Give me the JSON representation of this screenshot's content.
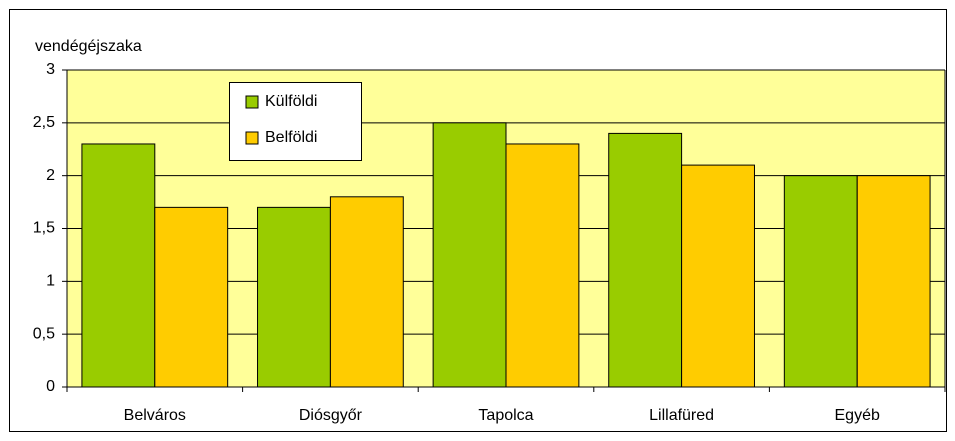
{
  "chart_data": {
    "type": "bar",
    "y_label": "vendégéjszaka",
    "categories": [
      "Belváros",
      "Diósgyőr",
      "Tapolca",
      "Lillafüred",
      "Egyéb"
    ],
    "series": [
      {
        "name": "Külföldi",
        "color": "#99cc00",
        "values": [
          2.3,
          1.7,
          2.5,
          2.4,
          2.0
        ]
      },
      {
        "name": "Belföldi",
        "color": "#ffcc00",
        "values": [
          1.7,
          1.8,
          2.3,
          2.1,
          2.0
        ]
      }
    ],
    "ylim": [
      0,
      3
    ],
    "yticks": [
      0,
      {
        "value": 0.5,
        "label": "0,5"
      },
      1,
      {
        "value": 1.5,
        "label": "1,5"
      },
      2,
      {
        "value": 2.5,
        "label": "2,5"
      },
      3
    ],
    "grid": true,
    "background": "#ffff99"
  }
}
